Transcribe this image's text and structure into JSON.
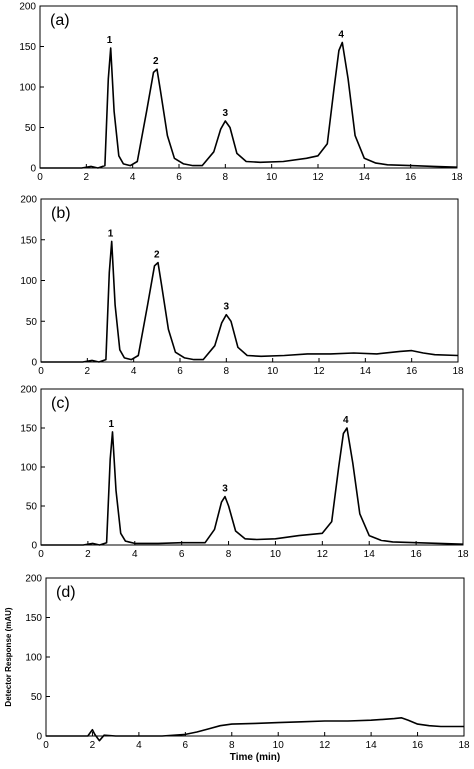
{
  "figure": {
    "xlabel": "Time (min)",
    "ylabel": "Detector Response (mAU)"
  },
  "chart_data": [
    {
      "type": "line",
      "panel_label": "(a)",
      "xlim": [
        0,
        18
      ],
      "ylim": [
        0,
        200
      ],
      "xticks": [
        0,
        2,
        4,
        6,
        8,
        10,
        12,
        14,
        16,
        18
      ],
      "yticks": [
        0,
        50,
        100,
        150,
        200
      ],
      "series": [
        {
          "x": [
            0,
            1.8,
            2.2,
            2.5,
            2.8,
            2.95,
            3.05,
            3.2,
            3.4,
            3.6,
            3.9,
            4.2,
            4.6,
            4.9,
            5.05,
            5.2,
            5.5,
            5.8,
            6.2,
            6.6,
            7.0,
            7.5,
            7.8,
            8.0,
            8.2,
            8.5,
            8.9,
            9.5,
            10.5,
            11.5,
            12.0,
            12.4,
            12.7,
            12.9,
            13.05,
            13.3,
            13.6,
            14.0,
            14.5,
            15.0,
            16.0,
            17.0,
            18.0
          ],
          "y": [
            0,
            0,
            2,
            0,
            3,
            110,
            148,
            70,
            15,
            5,
            3,
            8,
            70,
            118,
            122,
            95,
            40,
            12,
            5,
            3,
            3,
            20,
            48,
            58,
            50,
            18,
            8,
            7,
            8,
            12,
            15,
            30,
            100,
            145,
            155,
            110,
            40,
            12,
            6,
            4,
            3,
            2,
            1
          ]
        }
      ],
      "peak_labels": [
        {
          "text": "1",
          "x": 3.0,
          "y": 148
        },
        {
          "text": "2",
          "x": 5.0,
          "y": 122
        },
        {
          "text": "3",
          "x": 8.0,
          "y": 58
        },
        {
          "text": "4",
          "x": 13.0,
          "y": 155
        }
      ]
    },
    {
      "type": "line",
      "panel_label": "(b)",
      "xlim": [
        0,
        18
      ],
      "ylim": [
        0,
        200
      ],
      "xticks": [
        0,
        2,
        4,
        6,
        8,
        10,
        12,
        14,
        16,
        18
      ],
      "yticks": [
        0,
        50,
        100,
        150,
        200
      ],
      "series": [
        {
          "x": [
            0,
            1.8,
            2.2,
            2.5,
            2.8,
            2.95,
            3.05,
            3.2,
            3.4,
            3.6,
            3.9,
            4.2,
            4.6,
            4.9,
            5.05,
            5.2,
            5.5,
            5.8,
            6.2,
            6.6,
            7.0,
            7.5,
            7.8,
            8.0,
            8.2,
            8.5,
            8.9,
            9.5,
            10.5,
            11.5,
            12.5,
            13.5,
            14.5,
            15.5,
            16.0,
            16.5,
            17.0,
            18.0
          ],
          "y": [
            0,
            0,
            2,
            0,
            3,
            110,
            148,
            70,
            15,
            5,
            3,
            8,
            70,
            118,
            122,
            95,
            40,
            12,
            5,
            3,
            3,
            20,
            48,
            58,
            50,
            18,
            8,
            7,
            8,
            10,
            10,
            11,
            10,
            13,
            14,
            11,
            9,
            8
          ]
        }
      ],
      "peak_labels": [
        {
          "text": "1",
          "x": 3.0,
          "y": 148
        },
        {
          "text": "2",
          "x": 5.0,
          "y": 122
        },
        {
          "text": "3",
          "x": 8.0,
          "y": 58
        }
      ]
    },
    {
      "type": "line",
      "panel_label": "(c)",
      "xlim": [
        0,
        18
      ],
      "ylim": [
        0,
        200
      ],
      "xticks": [
        0,
        2,
        4,
        6,
        8,
        10,
        12,
        14,
        16,
        18
      ],
      "yticks": [
        0,
        50,
        100,
        150,
        200
      ],
      "series": [
        {
          "x": [
            0,
            1.8,
            2.2,
            2.5,
            2.8,
            2.95,
            3.05,
            3.2,
            3.4,
            3.6,
            4.0,
            5.0,
            6.0,
            7.0,
            7.4,
            7.7,
            7.85,
            8.0,
            8.3,
            8.7,
            9.2,
            10.0,
            11.0,
            12.0,
            12.4,
            12.7,
            12.9,
            13.05,
            13.3,
            13.6,
            14.0,
            14.5,
            15.0,
            16.0,
            17.0,
            18.0
          ],
          "y": [
            0,
            0,
            2,
            0,
            3,
            110,
            145,
            70,
            15,
            5,
            2,
            2,
            3,
            3,
            20,
            55,
            62,
            50,
            18,
            8,
            7,
            8,
            12,
            15,
            30,
            100,
            143,
            150,
            105,
            40,
            12,
            6,
            4,
            3,
            2,
            1
          ]
        }
      ],
      "peak_labels": [
        {
          "text": "1",
          "x": 3.0,
          "y": 145
        },
        {
          "text": "3",
          "x": 7.85,
          "y": 62
        },
        {
          "text": "4",
          "x": 13.0,
          "y": 150
        }
      ]
    },
    {
      "type": "line",
      "panel_label": "(d)",
      "xlim": [
        0,
        18
      ],
      "ylim": [
        0,
        200
      ],
      "xticks": [
        0,
        2,
        4,
        6,
        8,
        10,
        12,
        14,
        16,
        18
      ],
      "yticks": [
        0,
        50,
        100,
        150,
        200
      ],
      "xlabel": "Time (min)",
      "ylabel": "Detector Response (mAU)",
      "series": [
        {
          "x": [
            0,
            1.8,
            2.0,
            2.1,
            2.3,
            2.5,
            3.0,
            4.0,
            5.0,
            6.0,
            6.5,
            7.0,
            7.5,
            8.0,
            9.0,
            10.0,
            11.0,
            12.0,
            13.0,
            14.0,
            14.5,
            15.0,
            15.3,
            15.6,
            16.0,
            16.5,
            17.0,
            18.0
          ],
          "y": [
            0,
            0,
            8,
            2,
            -6,
            1,
            0,
            0,
            0,
            2,
            5,
            9,
            13,
            15,
            16,
            17,
            18,
            19,
            19,
            20,
            21,
            22,
            23,
            20,
            15,
            13,
            12,
            12
          ]
        }
      ],
      "peak_labels": []
    }
  ]
}
